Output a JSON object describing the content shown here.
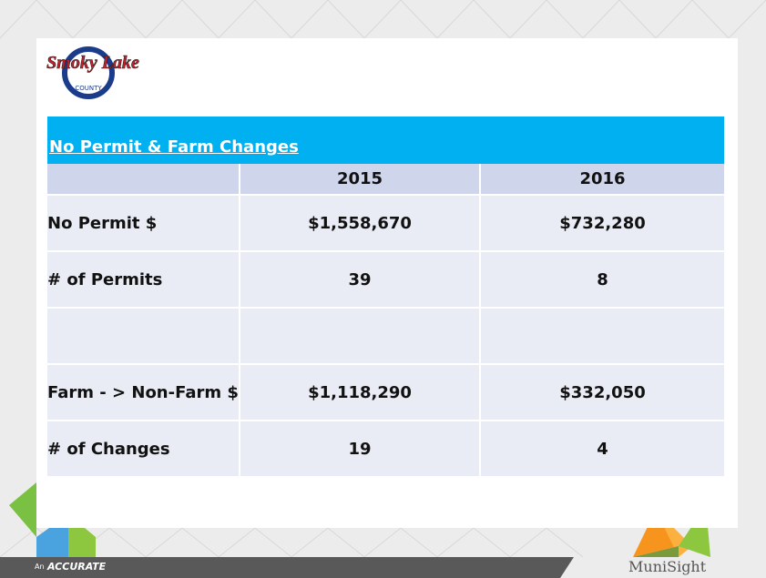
{
  "logo": {
    "name": "Smoky Lake",
    "subtitle": "COUNTY"
  },
  "table": {
    "title": "No Permit & Farm Changes",
    "header": [
      "2015",
      "2016"
    ],
    "rows": [
      [
        "No Permit $",
        "$1,558,670",
        "$732,280"
      ],
      [
        "# of Permits",
        "39",
        "8"
      ],
      [
        "Farm - > Non-Farm $",
        "$1,118,290",
        "$332,050"
      ],
      [
        "# of Changes",
        "19",
        "4"
      ]
    ]
  },
  "footer": {
    "prefix": "An",
    "brand": "ACCURATE",
    "product": "MuniSight"
  }
}
